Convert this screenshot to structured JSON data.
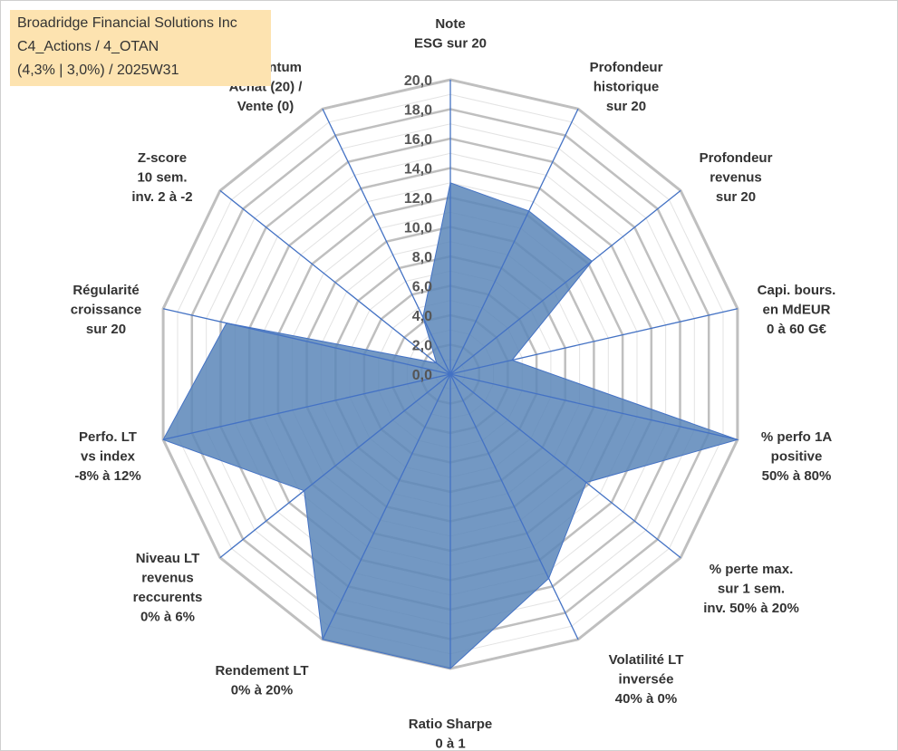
{
  "info": {
    "company": "Broadridge Financial Solutions Inc",
    "portfolio": "C4_Actions / 4_OTAN",
    "stats": "(4,3% | 3,0%) / 2025W31"
  },
  "colors": {
    "fill": "#5b86b8",
    "spoke": "#4472c4",
    "grid_major": "#bfbfbf",
    "grid_minor": "#e3e3e3",
    "infobox": "#fde3b0"
  },
  "chart_data": {
    "type": "radar",
    "rlim": [
      0,
      20
    ],
    "grid": true,
    "tick_labels": [
      "0,0",
      "2,0",
      "4,0",
      "6,0",
      "8,0",
      "10,0",
      "12,0",
      "14,0",
      "16,0",
      "18,0",
      "20,0"
    ],
    "axes": [
      {
        "label": [
          "Note",
          "ESG sur 20"
        ],
        "value": 13.0
      },
      {
        "label": [
          "Profondeur",
          "historique",
          "sur 20"
        ],
        "value": 12.3
      },
      {
        "label": [
          "Profondeur",
          "revenus",
          "sur 20"
        ],
        "value": 12.3
      },
      {
        "label": [
          "Capi. bours.",
          "en MdEUR",
          "0 à 60 G€"
        ],
        "value": 4.3
      },
      {
        "label": [
          "% perfo 1A",
          "positive",
          "50% à 80%"
        ],
        "value": 20.0
      },
      {
        "label": [
          "% perte max.",
          "sur 1 sem.",
          "inv. 50% à 20%"
        ],
        "value": 11.8
      },
      {
        "label": [
          "Volatilité LT",
          "inversée",
          "40% à 0%"
        ],
        "value": 15.4
      },
      {
        "label": [
          "Ratio Sharpe",
          "0 à 1"
        ],
        "value": 20.0
      },
      {
        "label": [
          "Rendement LT",
          "0% à 20%"
        ],
        "value": 20.0
      },
      {
        "label": [
          "Niveau LT",
          "revenus",
          "reccurents",
          "0% à 6%"
        ],
        "value": 12.7
      },
      {
        "label": [
          "Perfo. LT",
          "vs index",
          "-8% à 12%"
        ],
        "value": 20.0
      },
      {
        "label": [
          "Régularité",
          "croissance",
          "sur 20"
        ],
        "value": 15.6
      },
      {
        "label": [
          "Z-score",
          "10 sem.",
          "inv. 2 à -2"
        ],
        "value": 1.2
      },
      {
        "label": [
          "Momentum",
          "Achat (20) /",
          "Vente (0)"
        ],
        "value": 4.3
      }
    ]
  }
}
